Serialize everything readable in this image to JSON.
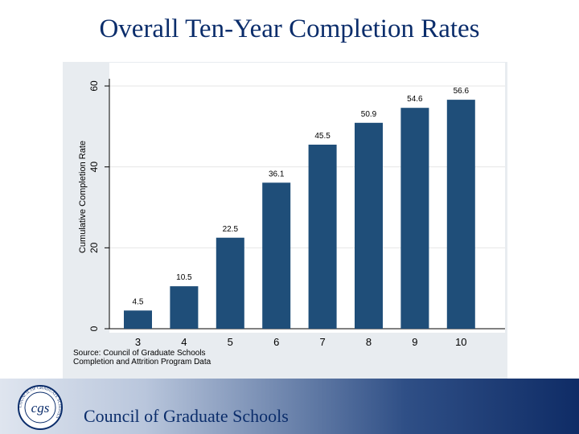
{
  "title": "Overall Ten-Year Completion Rates",
  "source_lines": [
    "Source: Council of Graduate Schools",
    "Completion and Attrition Program Data"
  ],
  "footer": {
    "org_name": "Council of Graduate Schools",
    "logo_monogram": "cgs",
    "logo_ring_text": "COUNCIL OF GRADUATE SCHOOLS"
  },
  "colors": {
    "bar": "#1f4e79",
    "title": "#0b2d6b",
    "panel": "#e8ecf0"
  },
  "chart_data": {
    "type": "bar",
    "title": "",
    "xlabel": "",
    "ylabel": "Cumulative Completion Rate",
    "categories": [
      "3",
      "4",
      "5",
      "6",
      "7",
      "8",
      "9",
      "10"
    ],
    "values": [
      4.5,
      10.5,
      22.5,
      36.1,
      45.5,
      50.9,
      54.6,
      56.6
    ],
    "data_labels": [
      "4.5",
      "10.5",
      "22.5",
      "36.1",
      "45.5",
      "50.9",
      "54.6",
      "56.6"
    ],
    "yticks": [
      0,
      20,
      40,
      60
    ],
    "ylim": [
      0,
      61.5
    ],
    "grid": true
  }
}
